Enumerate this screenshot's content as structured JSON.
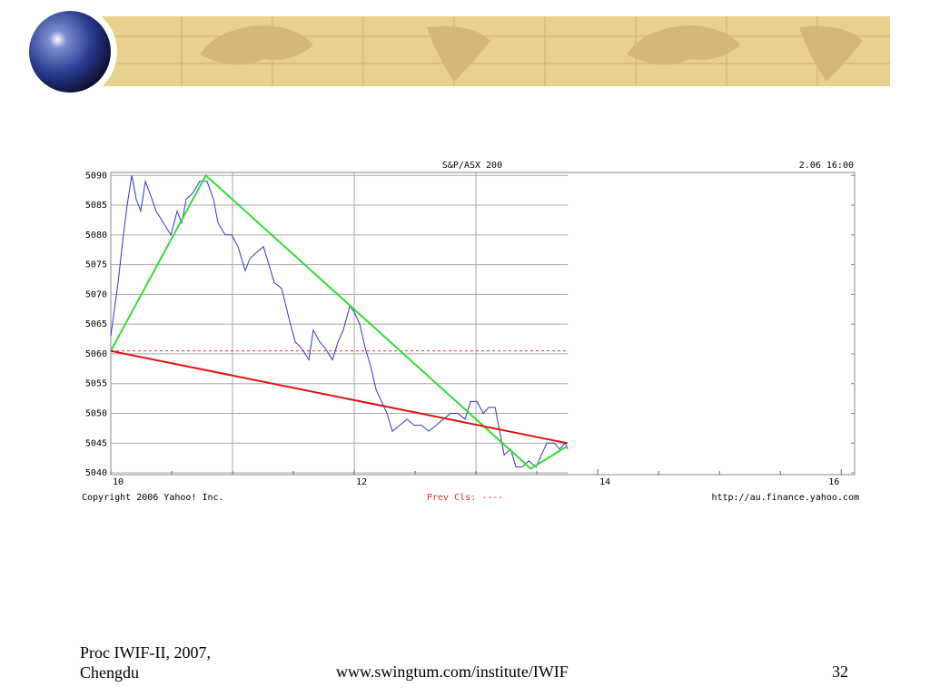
{
  "slide": {
    "footer_left": "Proc IWIF-II, 2007, Chengdu",
    "footer_center": "www.swingtum.com/institute/IWIF",
    "page_number": "32"
  },
  "chart_data": {
    "type": "line",
    "title": "S&P/ASX 200",
    "date_label": "2.06 16:00",
    "copyright": "Copyright 2006 Yahoo! Inc.",
    "prev_close_label": "Prev Cls: ----",
    "source_url": "http://au.finance.yahoo.com",
    "x": [
      10,
      10.06,
      10.104,
      10.134,
      10.172,
      10.209,
      10.246,
      10.284,
      10.321,
      10.373,
      10.433,
      10.493,
      10.545,
      10.582,
      10.619,
      10.672,
      10.731,
      10.791,
      10.843,
      10.881,
      10.94,
      10.993,
      11.045,
      11.104,
      11.142,
      11.194,
      11.254,
      11.299,
      11.343,
      11.403,
      11.463,
      11.515,
      11.567,
      11.627,
      11.664,
      11.716,
      11.761,
      11.821,
      11.866,
      11.91,
      11.963,
      12,
      12.045,
      12.09,
      12.134,
      12.179,
      12.224,
      12.269,
      12.313,
      12.373,
      12.433,
      12.493,
      12.552,
      12.612,
      12.672,
      12.731,
      12.791,
      12.851,
      12.91,
      12.955,
      13.007,
      13.06,
      13.104,
      13.157,
      13.194,
      13.231,
      13.284,
      13.328,
      13.381,
      13.433,
      13.493,
      13.537,
      13.582,
      13.642,
      13.687,
      13.731,
      13.754
    ],
    "series": [
      {
        "color": "#3333cc",
        "values": [
          5063,
          5072,
          5080,
          5085,
          5090,
          5086,
          5084,
          5089,
          5087,
          5084,
          5082,
          5080,
          5084,
          5082,
          5086,
          5087,
          5089,
          5089,
          5086,
          5082,
          5080,
          5080,
          5078,
          5074,
          5076,
          5077,
          5078,
          5075,
          5072,
          5071,
          5066,
          5062,
          5061,
          5059,
          5064,
          5062,
          5061,
          5059,
          5062,
          5064,
          5068,
          5067,
          5065,
          5061,
          5058,
          5054,
          5052,
          5050,
          5047,
          5048,
          5049,
          5048,
          5048,
          5047,
          5048,
          5049,
          5050,
          5050,
          5049,
          5052,
          5052,
          5050,
          5051,
          5051,
          5047,
          5043,
          5044,
          5041,
          5041,
          5042,
          5041,
          5043,
          5045,
          5045,
          5044,
          5045,
          5044
        ]
      }
    ],
    "prev_close": {
      "value": 5060.5,
      "color": "#dd3333"
    },
    "trend_lines": [
      {
        "color": "#33dd33",
        "x": [
          10,
          10.78,
          13.45,
          13.75
        ],
        "values": [
          5060.5,
          5090,
          5040.7,
          5044.5
        ]
      },
      {
        "color": "#dd1111",
        "x": [
          10,
          13.75
        ],
        "values": [
          5060.5,
          5045
        ]
      }
    ],
    "xlim": [
      10,
      16.11
    ],
    "xticks": [
      10,
      12,
      14,
      16
    ],
    "xminorticks": [
      10.5,
      11,
      11.5,
      12.5,
      13,
      13.5,
      14.5,
      15,
      15.5
    ],
    "xgrid": [
      11,
      12,
      13
    ],
    "ylim": [
      5039.7,
      5090.5
    ],
    "yticks": [
      5040,
      5045,
      5050,
      5055,
      5060,
      5065,
      5070,
      5075,
      5080,
      5085,
      5090
    ],
    "grid": true
  }
}
